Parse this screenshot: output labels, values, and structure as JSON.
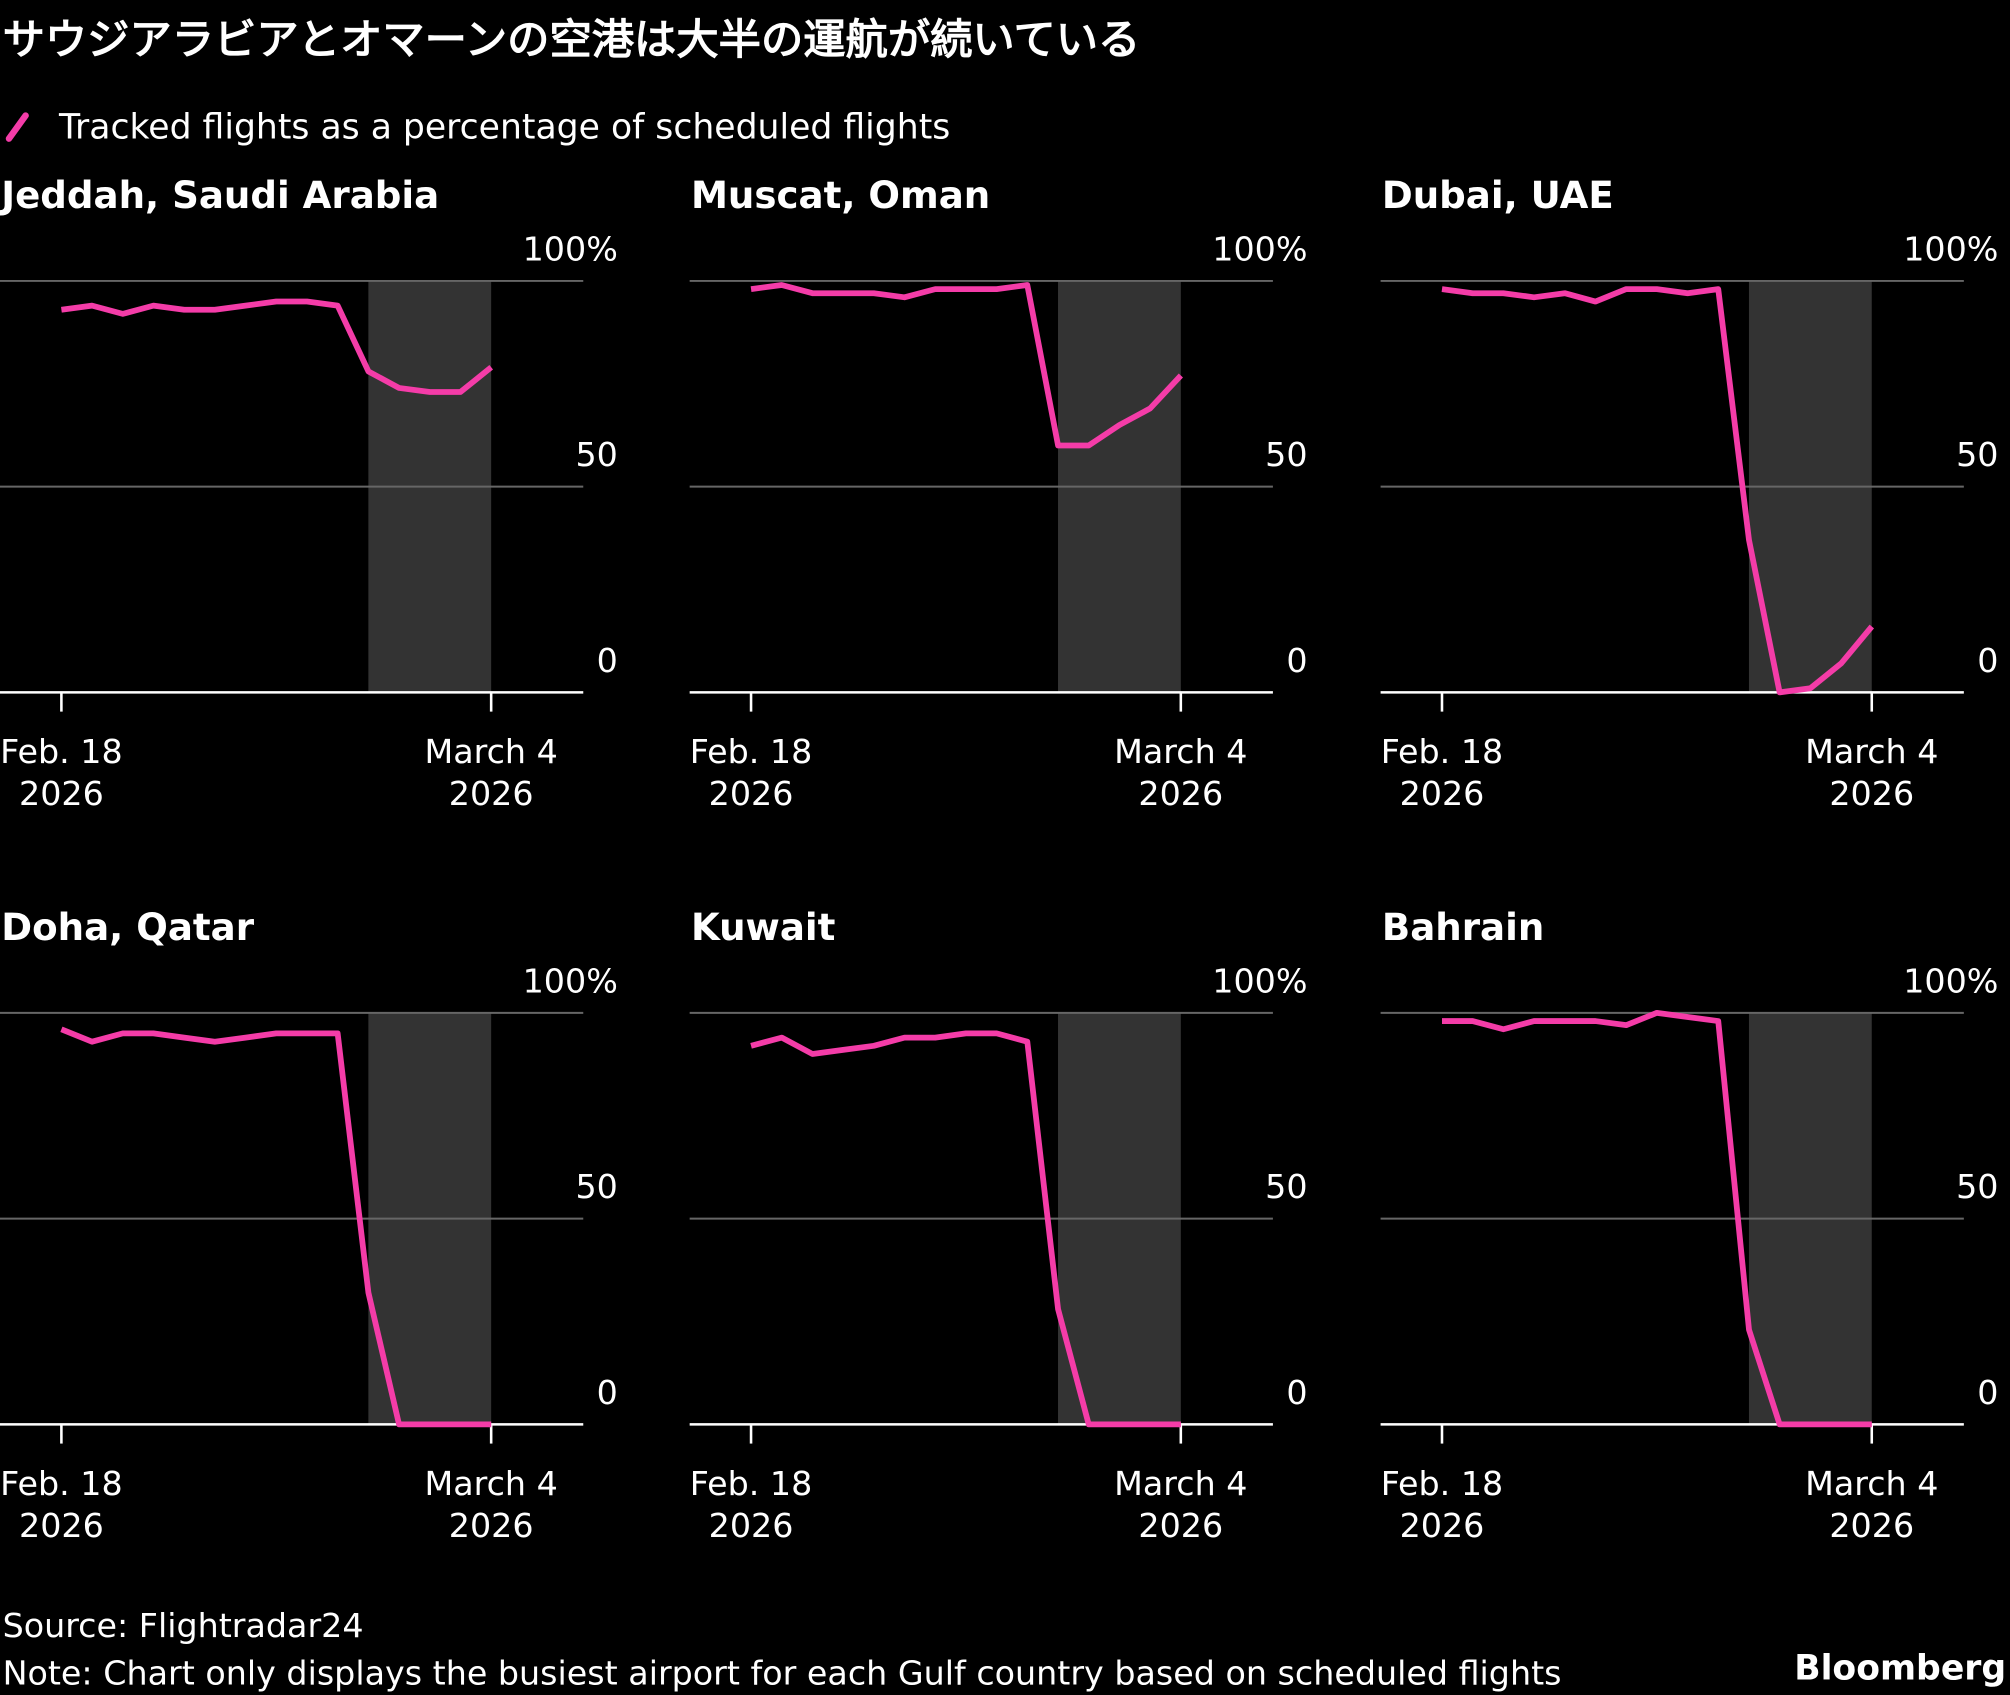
{
  "title": "サウジアラビアとオマーンの空港は大半の運航が続いている",
  "legend_label": "Tracked flights as a percentage of scheduled flights",
  "source": "Source: Flightradar24",
  "note": "Note: Chart only displays the busiest airport for each Gulf country based on scheduled flights",
  "logo": "Bloomberg",
  "chart_data": [
    {
      "type": "line",
      "title": "Jeddah, Saudi Arabia",
      "color": "#f43ca8",
      "shade": [
        "2026-02-28",
        "2026-03-04"
      ],
      "shade_color": "#333333",
      "x": [
        "2026-02-18",
        "2026-02-19",
        "2026-02-20",
        "2026-02-21",
        "2026-02-22",
        "2026-02-23",
        "2026-02-24",
        "2026-02-25",
        "2026-02-26",
        "2026-02-27",
        "2026-02-28",
        "2026-03-01",
        "2026-03-02",
        "2026-03-03",
        "2026-03-04"
      ],
      "values": [
        93,
        94,
        92,
        94,
        93,
        93,
        94,
        95,
        95,
        94,
        78,
        74,
        73,
        73,
        79
      ],
      "xlim": [
        "2026-02-16",
        "2026-03-07"
      ],
      "xticks": [
        {
          "value": "2026-02-18",
          "label": "Feb. 18\n2026"
        },
        {
          "value": "2026-03-04",
          "label": "March 4\n2026"
        }
      ],
      "ylim": [
        0,
        100
      ],
      "yticks": [
        0,
        50,
        {
          "value": 100,
          "label": "100%"
        }
      ],
      "grid": true
    },
    {
      "type": "line",
      "title": "Muscat, Oman",
      "color": "#f43ca8",
      "shade": [
        "2026-02-28",
        "2026-03-04"
      ],
      "shade_color": "#333333",
      "x": [
        "2026-02-18",
        "2026-02-19",
        "2026-02-20",
        "2026-02-21",
        "2026-02-22",
        "2026-02-23",
        "2026-02-24",
        "2026-02-25",
        "2026-02-26",
        "2026-02-27",
        "2026-02-28",
        "2026-03-01",
        "2026-03-02",
        "2026-03-03",
        "2026-03-04"
      ],
      "values": [
        98,
        99,
        97,
        97,
        97,
        96,
        98,
        98,
        98,
        99,
        60,
        60,
        65,
        69,
        77
      ],
      "xlim": [
        "2026-02-16",
        "2026-03-07"
      ],
      "xticks": [
        {
          "value": "2026-02-18",
          "label": "Feb. 18\n2026"
        },
        {
          "value": "2026-03-04",
          "label": "March 4\n2026"
        }
      ],
      "ylim": [
        0,
        100
      ],
      "yticks": [
        0,
        50,
        {
          "value": 100,
          "label": "100%"
        }
      ],
      "grid": true
    },
    {
      "type": "line",
      "title": "Dubai, UAE",
      "color": "#f43ca8",
      "shade": [
        "2026-02-28",
        "2026-03-04"
      ],
      "shade_color": "#333333",
      "x": [
        "2026-02-18",
        "2026-02-19",
        "2026-02-20",
        "2026-02-21",
        "2026-02-22",
        "2026-02-23",
        "2026-02-24",
        "2026-02-25",
        "2026-02-26",
        "2026-02-27",
        "2026-02-28",
        "2026-03-01",
        "2026-03-02",
        "2026-03-03",
        "2026-03-04"
      ],
      "values": [
        98,
        97,
        97,
        96,
        97,
        95,
        98,
        98,
        97,
        98,
        37,
        0,
        1,
        7,
        16
      ],
      "xlim": [
        "2026-02-16",
        "2026-03-07"
      ],
      "xticks": [
        {
          "value": "2026-02-18",
          "label": "Feb. 18\n2026"
        },
        {
          "value": "2026-03-04",
          "label": "March 4\n2026"
        }
      ],
      "ylim": [
        0,
        100
      ],
      "yticks": [
        0,
        50,
        {
          "value": 100,
          "label": "100%"
        }
      ],
      "grid": true
    },
    {
      "type": "line",
      "title": "Doha, Qatar",
      "color": "#f43ca8",
      "shade": [
        "2026-02-28",
        "2026-03-04"
      ],
      "shade_color": "#333333",
      "x": [
        "2026-02-18",
        "2026-02-19",
        "2026-02-20",
        "2026-02-21",
        "2026-02-22",
        "2026-02-23",
        "2026-02-24",
        "2026-02-25",
        "2026-02-26",
        "2026-02-27",
        "2026-02-28",
        "2026-03-01",
        "2026-03-02",
        "2026-03-03",
        "2026-03-04"
      ],
      "values": [
        96,
        93,
        95,
        95,
        94,
        93,
        94,
        95,
        95,
        95,
        32,
        0,
        0,
        0,
        0
      ],
      "xlim": [
        "2026-02-16",
        "2026-03-07"
      ],
      "xticks": [
        {
          "value": "2026-02-18",
          "label": "Feb. 18\n2026"
        },
        {
          "value": "2026-03-04",
          "label": "March 4\n2026"
        }
      ],
      "ylim": [
        0,
        100
      ],
      "yticks": [
        0,
        50,
        {
          "value": 100,
          "label": "100%"
        }
      ],
      "grid": true
    },
    {
      "type": "line",
      "title": "Kuwait",
      "color": "#f43ca8",
      "shade": [
        "2026-02-28",
        "2026-03-04"
      ],
      "shade_color": "#333333",
      "x": [
        "2026-02-18",
        "2026-02-19",
        "2026-02-20",
        "2026-02-21",
        "2026-02-22",
        "2026-02-23",
        "2026-02-24",
        "2026-02-25",
        "2026-02-26",
        "2026-02-27",
        "2026-02-28",
        "2026-03-01",
        "2026-03-02",
        "2026-03-03",
        "2026-03-04"
      ],
      "values": [
        92,
        94,
        90,
        91,
        92,
        94,
        94,
        95,
        95,
        93,
        28,
        0,
        0,
        0,
        0
      ],
      "xlim": [
        "2026-02-16",
        "2026-03-07"
      ],
      "xticks": [
        {
          "value": "2026-02-18",
          "label": "Feb. 18\n2026"
        },
        {
          "value": "2026-03-04",
          "label": "March 4\n2026"
        }
      ],
      "ylim": [
        0,
        100
      ],
      "yticks": [
        0,
        50,
        {
          "value": 100,
          "label": "100%"
        }
      ],
      "grid": true
    },
    {
      "type": "line",
      "title": "Bahrain",
      "color": "#f43ca8",
      "shade": [
        "2026-02-28",
        "2026-03-04"
      ],
      "shade_color": "#333333",
      "x": [
        "2026-02-18",
        "2026-02-19",
        "2026-02-20",
        "2026-02-21",
        "2026-02-22",
        "2026-02-23",
        "2026-02-24",
        "2026-02-25",
        "2026-02-26",
        "2026-02-27",
        "2026-02-28",
        "2026-03-01",
        "2026-03-02",
        "2026-03-03",
        "2026-03-04"
      ],
      "values": [
        98,
        98,
        96,
        98,
        98,
        98,
        97,
        100,
        99,
        98,
        23,
        0,
        0,
        0,
        0
      ],
      "xlim": [
        "2026-02-16",
        "2026-03-07"
      ],
      "xticks": [
        {
          "value": "2026-02-18",
          "label": "Feb. 18\n2026"
        },
        {
          "value": "2026-03-04",
          "label": "March 4\n2026"
        }
      ],
      "ylim": [
        0,
        100
      ],
      "yticks": [
        0,
        50,
        {
          "value": 100,
          "label": "100%"
        }
      ],
      "grid": true
    }
  ]
}
